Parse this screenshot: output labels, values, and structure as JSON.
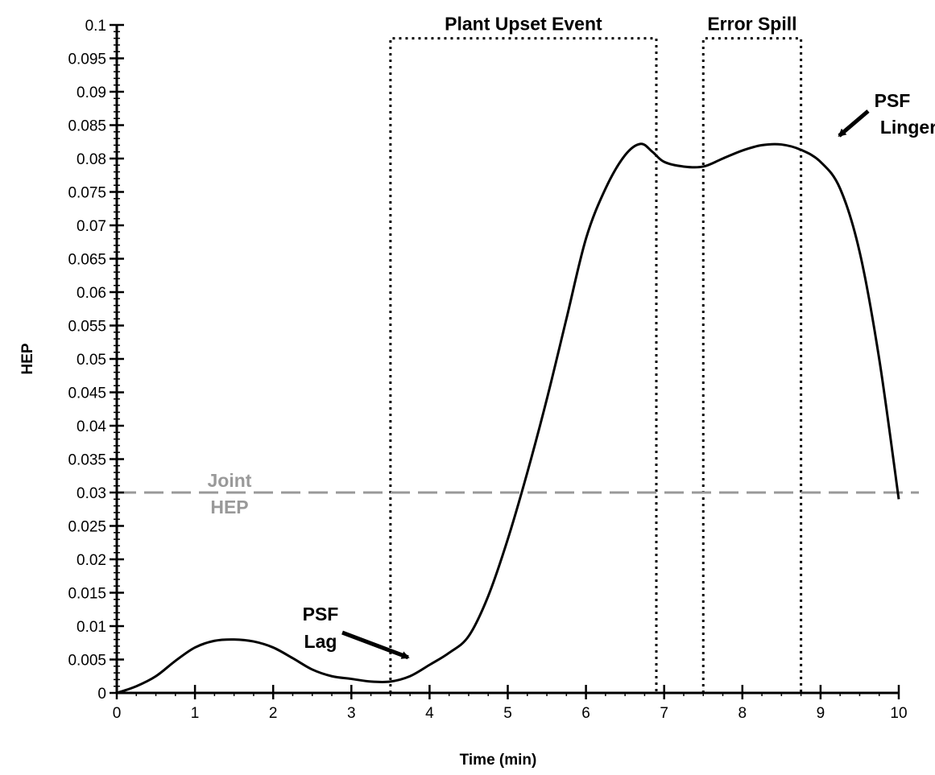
{
  "chart_data": {
    "type": "line",
    "title": "",
    "xlabel": "Time (min)",
    "ylabel": "HEP",
    "xlim": [
      0,
      10
    ],
    "ylim": [
      0,
      0.1
    ],
    "grid": false,
    "x_ticks": [
      0,
      1,
      2,
      3,
      4,
      5,
      6,
      7,
      8,
      9,
      10
    ],
    "y_ticks": [
      0,
      0.005,
      0.01,
      0.015,
      0.02,
      0.025,
      0.03,
      0.035,
      0.04,
      0.045,
      0.05,
      0.055,
      0.06,
      0.065,
      0.07,
      0.075,
      0.08,
      0.085,
      0.09,
      0.095,
      0.1
    ],
    "series": [
      {
        "x": [
          0,
          0.25,
          0.5,
          0.75,
          1.0,
          1.25,
          1.5,
          1.75,
          2.0,
          2.25,
          2.5,
          2.75,
          3.0,
          3.25,
          3.5,
          3.75,
          4.0,
          4.25,
          4.5,
          4.75,
          5.0,
          5.25,
          5.5,
          5.75,
          6.0,
          6.25,
          6.5,
          6.7,
          6.85,
          7.0,
          7.25,
          7.5,
          7.75,
          8.0,
          8.25,
          8.5,
          8.75,
          9.0,
          9.25,
          9.5,
          9.75,
          10.0
        ],
        "y": [
          0,
          0.001,
          0.0025,
          0.0048,
          0.0068,
          0.0078,
          0.008,
          0.0077,
          0.0068,
          0.0052,
          0.0035,
          0.0025,
          0.0021,
          0.0017,
          0.0017,
          0.0025,
          0.0042,
          0.006,
          0.0085,
          0.0145,
          0.023,
          0.033,
          0.044,
          0.056,
          0.068,
          0.0755,
          0.0805,
          0.0822,
          0.081,
          0.0795,
          0.0788,
          0.0788,
          0.08,
          0.0812,
          0.082,
          0.0821,
          0.0813,
          0.0795,
          0.0755,
          0.066,
          0.05,
          0.029
        ],
        "color": "#000000"
      }
    ],
    "reference_lines": [
      {
        "y": 0.03,
        "style": "dashed",
        "color": "#999999",
        "label": [
          "Joint",
          "HEP"
        ]
      }
    ],
    "regions": [
      {
        "x_start": 3.5,
        "x_end": 6.9,
        "y_top": 0.098,
        "label": "Plant Upset Event",
        "style": "dotted"
      },
      {
        "x_start": 7.5,
        "x_end": 8.75,
        "y_top": 0.098,
        "label": "Error Spill",
        "style": "dotted"
      }
    ],
    "annotations": [
      {
        "lines": [
          "PSF",
          "Lag"
        ],
        "arrow_to": [
          3.5,
          0.0017
        ]
      },
      {
        "lines": [
          "PSF",
          "Linger"
        ],
        "arrow_to": [
          8.95,
          0.081
        ]
      }
    ]
  }
}
